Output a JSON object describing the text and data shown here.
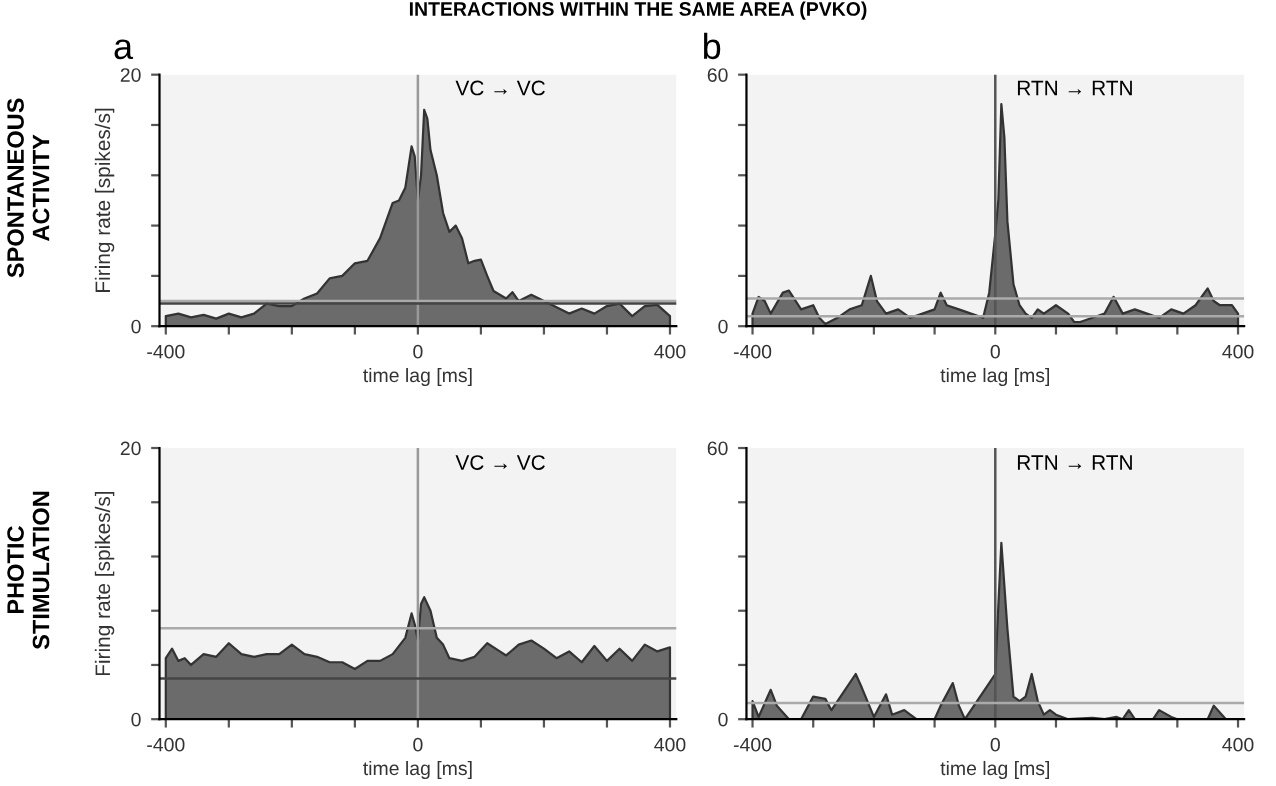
{
  "chart_data": [
    {
      "type": "area",
      "title": "a",
      "subtitle": "VC → VC",
      "xlabel": "time lag [ms]",
      "ylabel": "Firing rate [spikes/s]",
      "annotations": [
        "INTERACTIONS WITHIN THE SAME AREA (PVKO)",
        "SPONTANEOUS\nACTIVITY"
      ],
      "x": [
        -400,
        -380,
        -360,
        -340,
        -320,
        -300,
        -280,
        -260,
        -240,
        -220,
        -200,
        -180,
        -160,
        -140,
        -120,
        -100,
        -80,
        -60,
        -40,
        -30,
        -20,
        -10,
        -5,
        0,
        5,
        10,
        15,
        20,
        30,
        40,
        50,
        60,
        70,
        80,
        90,
        100,
        110,
        120,
        130,
        140,
        150,
        160,
        180,
        200,
        220,
        240,
        260,
        280,
        300,
        320,
        340,
        360,
        380,
        400
      ],
      "series": [
        {
          "color": "#6b6b6b",
          "values": [
            0.8,
            1.0,
            0.7,
            0.9,
            0.6,
            1.0,
            0.7,
            1.0,
            1.8,
            1.6,
            1.6,
            2.2,
            2.6,
            3.8,
            4.0,
            5.0,
            5.2,
            7.0,
            9.8,
            10.0,
            11.0,
            14.3,
            13.5,
            10.0,
            12.0,
            17.2,
            16.5,
            14.0,
            12.0,
            9.0,
            7.5,
            8.0,
            7.0,
            5.0,
            5.2,
            5.3,
            4.0,
            2.8,
            2.5,
            2.2,
            2.7,
            2.0,
            2.5,
            2.0,
            1.5,
            1.0,
            1.4,
            1.0,
            1.6,
            1.8,
            0.8,
            1.6,
            1.7,
            0.8
          ]
        }
      ],
      "xlim": [
        -410,
        410
      ],
      "ylim": [
        0,
        20
      ],
      "xticks": [
        -400,
        {
          "value": -300,
          "label": null
        },
        {
          "value": -200,
          "label": null
        },
        {
          "value": -100,
          "label": null
        },
        0,
        {
          "value": 100,
          "label": null
        },
        {
          "value": 200,
          "label": null
        },
        {
          "value": 300,
          "label": null
        },
        400
      ],
      "yticks": [
        0,
        {
          "value": 4,
          "label": null
        },
        {
          "value": 8,
          "label": null
        },
        {
          "value": 12,
          "label": null
        },
        {
          "value": 16,
          "label": null
        },
        20
      ],
      "ref_lines": [
        {
          "axis": "x",
          "value": 0,
          "color": "#999999"
        },
        {
          "axis": "y",
          "value": 2.0,
          "color": "#aaaaaa"
        },
        {
          "axis": "y",
          "value": 1.8,
          "color": "#444444"
        }
      ]
    },
    {
      "type": "area",
      "title": "b",
      "subtitle": "RTN → RTN",
      "xlabel": "time lag [ms]",
      "x": [
        -400,
        -390,
        -380,
        -370,
        -350,
        -340,
        -320,
        -300,
        -290,
        -280,
        -260,
        -240,
        -220,
        -205,
        -195,
        -180,
        -160,
        -140,
        -120,
        -100,
        -90,
        -80,
        -60,
        -40,
        -20,
        -10,
        0,
        5,
        10,
        15,
        20,
        30,
        40,
        50,
        60,
        70,
        80,
        100,
        120,
        130,
        140,
        160,
        180,
        195,
        210,
        230,
        250,
        270,
        290,
        310,
        330,
        350,
        360,
        370,
        390,
        400
      ],
      "series": [
        {
          "color": "#6b6b6b",
          "values": [
            3,
            7,
            6,
            3,
            8,
            8.5,
            4,
            5,
            2,
            0.5,
            2,
            4,
            5,
            12,
            6,
            3,
            4,
            2,
            3,
            4,
            8,
            5,
            4,
            3,
            2,
            8,
            22,
            30,
            53,
            45,
            25,
            10,
            5,
            3,
            2,
            4,
            3,
            5,
            3,
            1,
            1,
            2,
            3,
            7,
            3,
            4,
            3,
            2,
            4,
            3,
            5,
            9,
            6,
            5,
            5,
            3
          ]
        }
      ],
      "xlim": [
        -410,
        410
      ],
      "ylim": [
        0,
        60
      ],
      "xticks": [
        -400,
        {
          "value": -300,
          "label": null
        },
        {
          "value": -200,
          "label": null
        },
        {
          "value": -100,
          "label": null
        },
        0,
        {
          "value": 100,
          "label": null
        },
        {
          "value": 200,
          "label": null
        },
        {
          "value": 300,
          "label": null
        },
        400
      ],
      "yticks": [
        0,
        {
          "value": 12,
          "label": null
        },
        {
          "value": 24,
          "label": null
        },
        {
          "value": 36,
          "label": null
        },
        {
          "value": 48,
          "label": null
        },
        60
      ],
      "ref_lines": [
        {
          "axis": "x",
          "value": 0,
          "color": "#555555"
        },
        {
          "axis": "y",
          "value": 6.6,
          "color": "#aaaaaa"
        },
        {
          "axis": "y",
          "value": 2.4,
          "color": "#aaaaaa"
        }
      ]
    },
    {
      "type": "area",
      "subtitle": "VC → VC",
      "xlabel": "time lag [ms]",
      "ylabel": "Firing rate [spikes/s]",
      "annotations": [
        "PHOTIC\nSTIMULATION"
      ],
      "x": [
        -400,
        -390,
        -380,
        -370,
        -360,
        -340,
        -320,
        -300,
        -280,
        -260,
        -240,
        -220,
        -200,
        -180,
        -160,
        -140,
        -120,
        -100,
        -80,
        -60,
        -40,
        -20,
        -10,
        -5,
        0,
        5,
        10,
        20,
        30,
        40,
        50,
        70,
        90,
        110,
        130,
        140,
        160,
        180,
        200,
        220,
        240,
        260,
        280,
        300,
        320,
        340,
        360,
        380,
        400
      ],
      "series": [
        {
          "color": "#6b6b6b",
          "values": [
            4.5,
            5.2,
            4.3,
            4.5,
            4.0,
            4.8,
            4.6,
            5.6,
            4.8,
            4.6,
            4.8,
            4.8,
            5.5,
            4.8,
            4.6,
            4.2,
            4.2,
            3.7,
            4.3,
            4.3,
            4.8,
            6.0,
            7.8,
            7.0,
            5.8,
            8.5,
            9.0,
            8.0,
            6.0,
            5.5,
            4.5,
            4.3,
            4.6,
            5.6,
            5.0,
            4.7,
            5.5,
            5.8,
            5.2,
            4.5,
            5.0,
            4.2,
            5.4,
            4.3,
            5.2,
            4.3,
            5.5,
            5.0,
            5.3
          ]
        }
      ],
      "xlim": [
        -410,
        410
      ],
      "ylim": [
        0,
        20
      ],
      "xticks": [
        -400,
        {
          "value": -300,
          "label": null
        },
        {
          "value": -200,
          "label": null
        },
        {
          "value": -100,
          "label": null
        },
        0,
        {
          "value": 100,
          "label": null
        },
        {
          "value": 200,
          "label": null
        },
        {
          "value": 300,
          "label": null
        },
        400
      ],
      "yticks": [
        0,
        {
          "value": 4,
          "label": null
        },
        {
          "value": 8,
          "label": null
        },
        {
          "value": 12,
          "label": null
        },
        {
          "value": 16,
          "label": null
        },
        20
      ],
      "ref_lines": [
        {
          "axis": "x",
          "value": 0,
          "color": "#999999"
        },
        {
          "axis": "y",
          "value": 6.7,
          "color": "#aaaaaa"
        },
        {
          "axis": "y",
          "value": 3.0,
          "color": "#444444"
        }
      ]
    },
    {
      "type": "area",
      "subtitle": "RTN → RTN",
      "xlabel": "time lag [ms]",
      "x": [
        -400,
        -390,
        -370,
        -360,
        -340,
        -320,
        -300,
        -280,
        -270,
        -250,
        -230,
        -220,
        -200,
        -180,
        -170,
        -150,
        -130,
        -100,
        -90,
        -70,
        -60,
        -50,
        -30,
        -10,
        0,
        5,
        10,
        20,
        30,
        40,
        50,
        60,
        70,
        80,
        90,
        100,
        120,
        160,
        180,
        200,
        210,
        220,
        230,
        260,
        270,
        290,
        300,
        350,
        360,
        380,
        400
      ],
      "series": [
        {
          "color": "#6b6b6b",
          "values": [
            4,
            0.5,
            6.5,
            3,
            0,
            0,
            5,
            4.5,
            2,
            6,
            10,
            7,
            0.5,
            5.5,
            1,
            2,
            0,
            0,
            3,
            8,
            3,
            0,
            4,
            8,
            10,
            25,
            39,
            20,
            5,
            4,
            5,
            10,
            4,
            1,
            2,
            1,
            0,
            0.3,
            0,
            0.5,
            0,
            2,
            0,
            0,
            2,
            0.5,
            0,
            0,
            3,
            0,
            0
          ]
        }
      ],
      "xlim": [
        -410,
        410
      ],
      "ylim": [
        0,
        60
      ],
      "xticks": [
        -400,
        {
          "value": -300,
          "label": null
        },
        {
          "value": -200,
          "label": null
        },
        {
          "value": -100,
          "label": null
        },
        0,
        {
          "value": 100,
          "label": null
        },
        {
          "value": 200,
          "label": null
        },
        {
          "value": 300,
          "label": null
        },
        400
      ],
      "yticks": [
        0,
        {
          "value": 12,
          "label": null
        },
        {
          "value": 24,
          "label": null
        },
        {
          "value": 36,
          "label": null
        },
        {
          "value": 48,
          "label": null
        },
        60
      ],
      "ref_lines": [
        {
          "axis": "x",
          "value": 0,
          "color": "#555555"
        },
        {
          "axis": "y",
          "value": 3.6,
          "color": "#aaaaaa"
        }
      ]
    }
  ]
}
